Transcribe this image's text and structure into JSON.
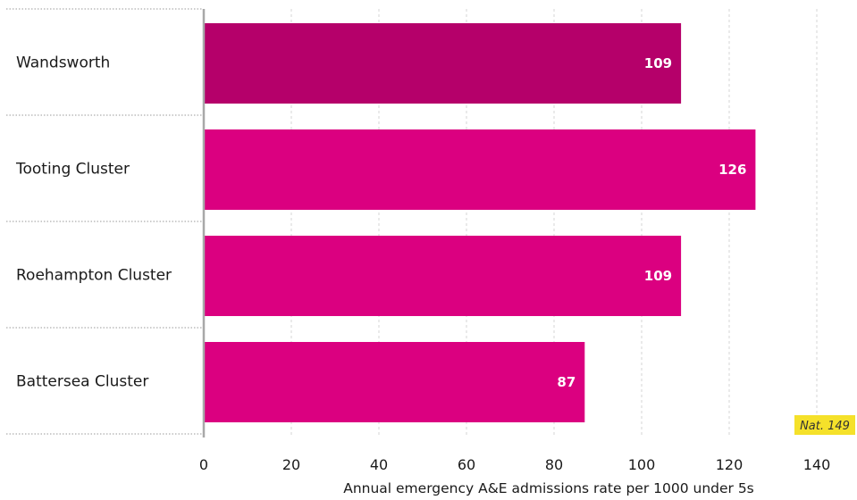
{
  "chart_data": {
    "type": "bar",
    "orientation": "horizontal",
    "categories": [
      "Wandsworth",
      "Tooting Cluster",
      "Roehampton Cluster",
      "Battersea Cluster"
    ],
    "values": [
      109,
      126,
      109,
      87
    ],
    "value_labels": [
      "109",
      "126",
      "109",
      "87"
    ],
    "xlabel": "Annual emergency A&E admissions rate per 1000 under 5s",
    "xlim": [
      0,
      140
    ],
    "xticks": [
      0,
      20,
      40,
      60,
      80,
      100,
      120,
      140
    ],
    "grid": true,
    "bar_colors": [
      "#b5006a",
      "#db0080",
      "#db0080",
      "#db0080"
    ],
    "benchmark": {
      "label": "Nat. 149",
      "value": 149,
      "color": "#f5e12a"
    }
  }
}
